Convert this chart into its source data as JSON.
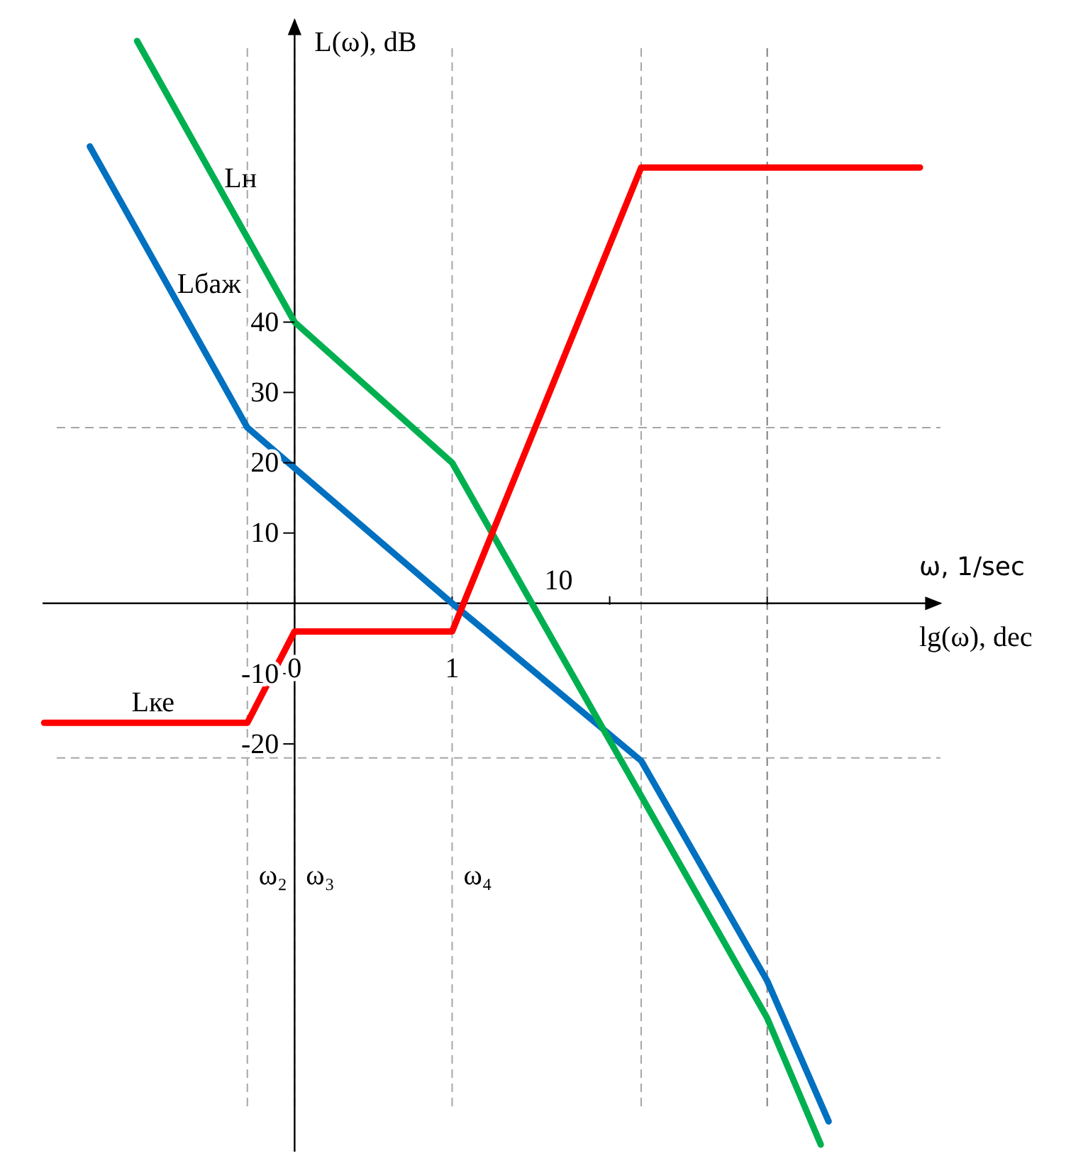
{
  "chart_data": {
    "type": "line",
    "ylabel": "L(ω), dB",
    "xlabel": "lg(ω), dec",
    "x2label": "ω, 1/sec",
    "xlim": [
      -1.6,
      4.1
    ],
    "xticks": [
      0,
      1,
      {
        "value": 2,
        "label": null
      },
      {
        "value": 3,
        "label": null
      }
    ],
    "annotations": [
      "10"
    ],
    "ylim": [
      -78,
      83
    ],
    "yticks": [
      -20,
      -10,
      10,
      20,
      30,
      40
    ],
    "grid": false,
    "line_style": "solid",
    "marker": "none",
    "series": [
      {
        "name": "Lбаж",
        "color": "#0070c0",
        "x": [
          -1.3,
          -0.3,
          1,
          2.2,
          3,
          3.39
        ],
        "values": [
          65,
          25,
          0,
          -22.4,
          -53.7,
          -73.7
        ]
      },
      {
        "name": "Lн",
        "color": "#00b050",
        "x": [
          -1,
          0,
          1,
          3,
          3.34
        ],
        "values": [
          80,
          40,
          20,
          -59,
          -77
        ]
      },
      {
        "name": "Lке",
        "color": "#ff0000",
        "x": [
          -1.59,
          -0.3,
          0,
          1,
          2.2,
          3.97
        ],
        "values": [
          -17,
          -17,
          -4,
          -4,
          62,
          62
        ]
      }
    ],
    "ref_lines": [
      {
        "axis": "x",
        "value": -0.3,
        "label": "ω₂",
        "color": "#a6a6a6",
        "line_style": "dashed"
      },
      {
        "axis": "x",
        "value": 0,
        "label": "ω₃",
        "color": "#a6a6a6",
        "line_style": "dashed"
      },
      {
        "axis": "x",
        "value": 1,
        "label": "ω₄",
        "color": "#a6a6a6",
        "line_style": "dashed"
      },
      {
        "axis": "x",
        "value": 2.2,
        "color": "#a6a6a6",
        "line_style": "dashed"
      },
      {
        "axis": "x",
        "value": 3,
        "color": "#7f7f7f",
        "line_style": "dashed"
      },
      {
        "axis": "y",
        "value": 25,
        "color": "#a6a6a6",
        "line_style": "dashed"
      },
      {
        "axis": "y",
        "value": -22,
        "color": "#a6a6a6",
        "line_style": "dashed"
      }
    ]
  }
}
